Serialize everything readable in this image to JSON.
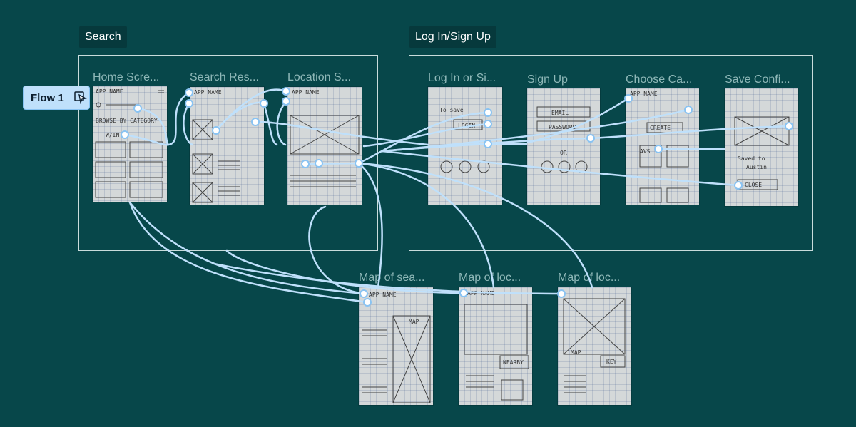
{
  "sections": [
    {
      "id": "search",
      "label": "Search"
    },
    {
      "id": "login",
      "label": "Log In/Sign Up"
    }
  ],
  "frames": {
    "home": {
      "title": "Home Scre...",
      "scrawl1": "APP NAME",
      "scrawl2": "BROWSE BY CATEGORY",
      "scrawl3": "W/IN"
    },
    "search_results": {
      "title": "Search Res...",
      "scrawl1": "APP NAME"
    },
    "location": {
      "title": "Location S...",
      "scrawl1": "APP NAME"
    },
    "login": {
      "title": "Log In or Si...",
      "scrawl1": "To save",
      "scrawl2": "LOGIN"
    },
    "signup": {
      "title": "Sign Up",
      "scrawl1": "EMAIL",
      "scrawl2": "PASSWORD",
      "scrawl3": "OR"
    },
    "choose": {
      "title": "Choose Ca...",
      "scrawl1": "APP NAME",
      "scrawl2": "CREATE",
      "scrawl3": "AVS"
    },
    "save": {
      "title": "Save Confi...",
      "scrawl1": "Saved to",
      "scrawl2": "Austin",
      "scrawl3": "CLOSE"
    },
    "map_search": {
      "title": "Map of sea...",
      "scrawl1": "APP NAME",
      "scrawl2": "MAP"
    },
    "map_loc1": {
      "title": "Map of loc...",
      "scrawl1": "APP NAME",
      "scrawl2": "NEARBY"
    },
    "map_loc2": {
      "title": "Map of loc...",
      "scrawl1": "MAP",
      "scrawl2": "KEY"
    }
  },
  "flow": {
    "label": "Flow 1",
    "icon": "play-icon"
  },
  "colors": {
    "background": "#07474a",
    "connector": "#bfe0fb",
    "chip": "#bfe0fb"
  }
}
